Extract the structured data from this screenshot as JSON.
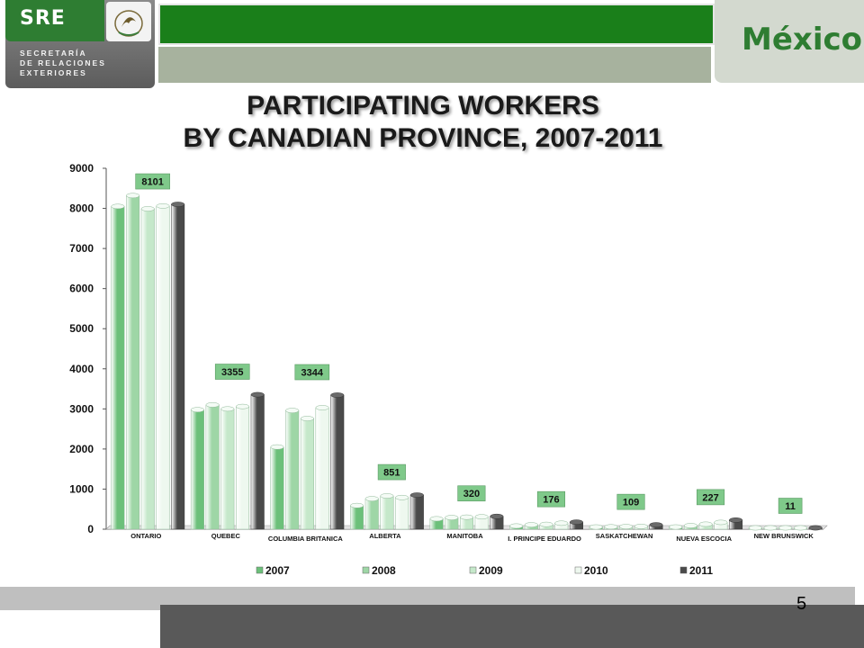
{
  "header": {
    "sre_label": "SRE",
    "sre_subtitle_lines": [
      "SECRETARÍA",
      "DE RELACIONES",
      "EXTERIORES"
    ],
    "mexico_logo_text": "México",
    "title_lines": [
      "PARTICIPATING WORKERS",
      "BY CANADIAN PROVINCE, 2007-2011"
    ]
  },
  "page_number": "5",
  "colors": {
    "sre_green": "#2e7d32",
    "top_bar_green": "#1a7f1a",
    "label_box_green": "#7fc98a",
    "series": [
      "#6cc07a",
      "#9ed6a6",
      "#c5e8ca",
      "#eef8ef",
      "#4a4a4a"
    ]
  },
  "chart_data": {
    "type": "bar",
    "title": "PARTICIPATING WORKERS BY CANADIAN PROVINCE, 2007-2011",
    "xlabel": "",
    "ylabel": "",
    "ylim": [
      0,
      9000
    ],
    "yticks": [
      0,
      1000,
      2000,
      3000,
      4000,
      5000,
      6000,
      7000,
      8000,
      9000
    ],
    "legend_position": "bottom",
    "categories": [
      "ONTARIO",
      "QUEBEC",
      "COLUMBIA BRITANICA",
      "ALBERTA",
      "MANITOBA",
      "I. PRINCIPE EDUARDO",
      "SASKATCHEWAN",
      "NUEVA ESCOCIA",
      "NEW BRUNSWICK"
    ],
    "series": [
      {
        "name": "2007",
        "values": [
          8050,
          2980,
          2050,
          590,
          260,
          80,
          55,
          55,
          0
        ]
      },
      {
        "name": "2008",
        "values": [
          8320,
          3100,
          2960,
          760,
          290,
          110,
          60,
          90,
          0
        ]
      },
      {
        "name": "2009",
        "values": [
          7990,
          3000,
          2760,
          830,
          300,
          120,
          65,
          125,
          0
        ]
      },
      {
        "name": "2010",
        "values": [
          8060,
          3060,
          3030,
          790,
          310,
          150,
          70,
          170,
          0
        ]
      },
      {
        "name": "2011",
        "values": [
          8101,
          3355,
          3344,
          851,
          320,
          176,
          109,
          227,
          11
        ]
      }
    ],
    "annotations": [
      "8101",
      "3355",
      "3344",
      "851",
      "320",
      "176",
      "109",
      "227",
      "11"
    ]
  }
}
